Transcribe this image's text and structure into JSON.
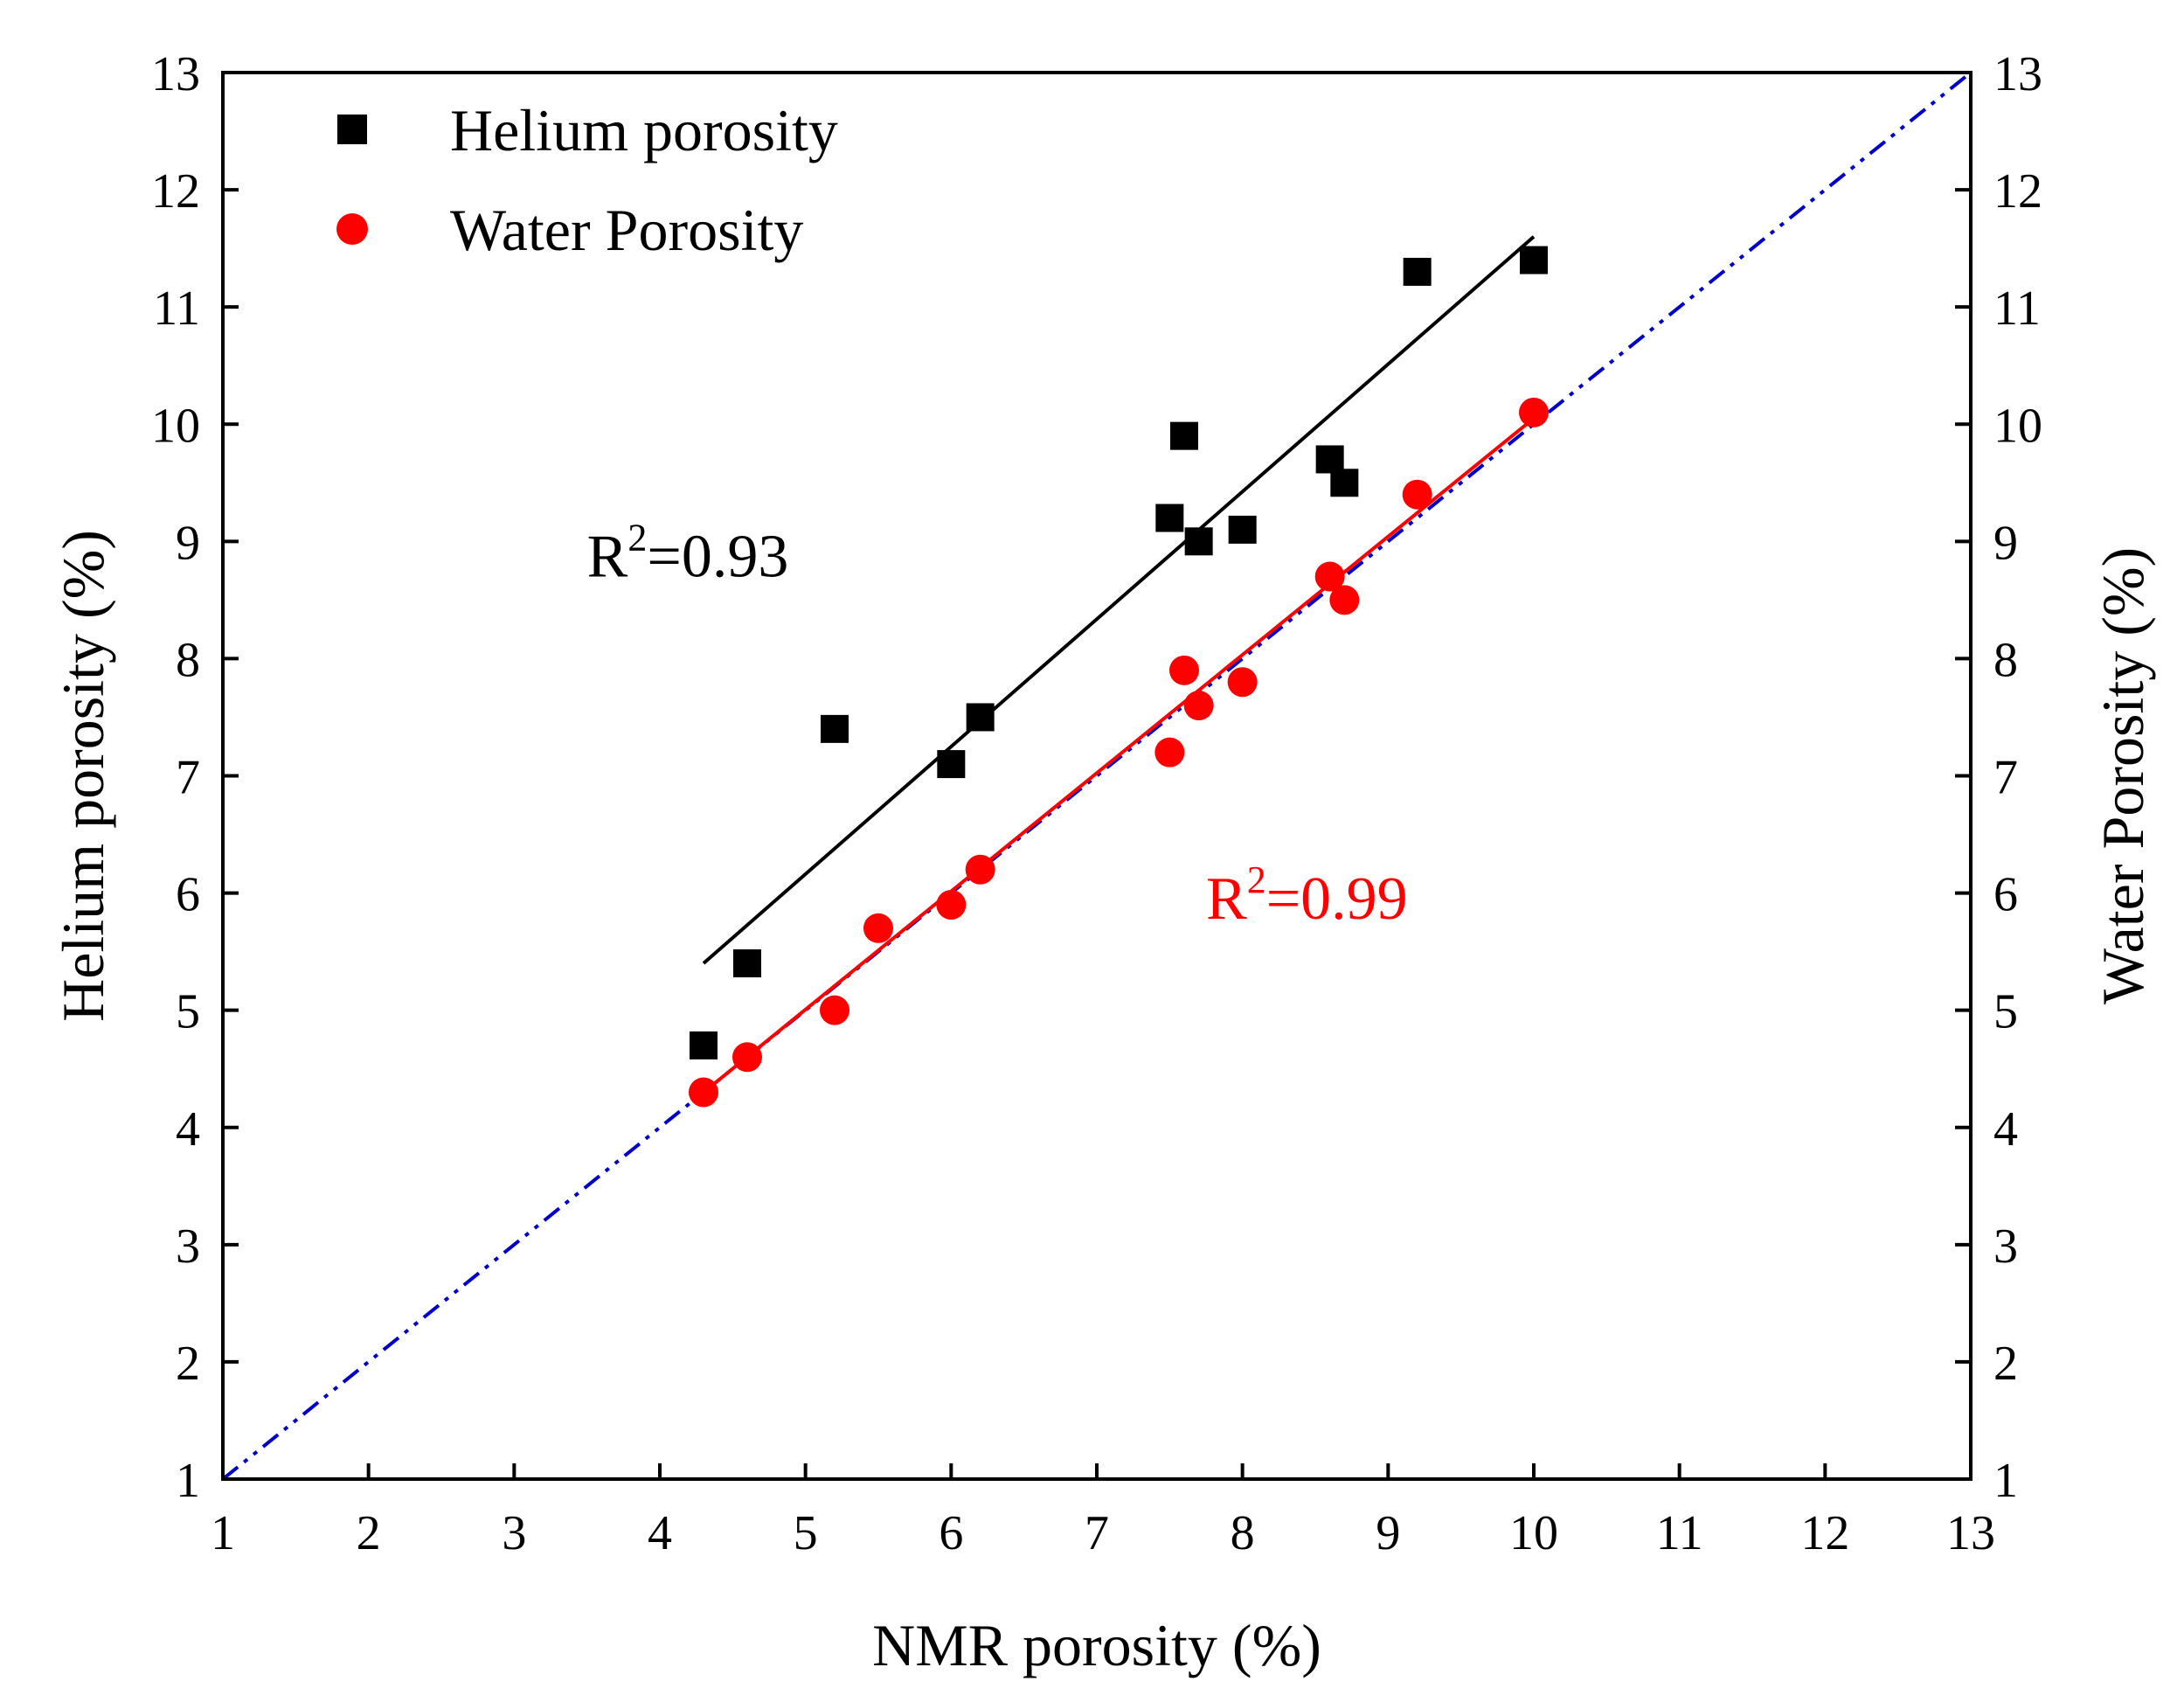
{
  "chart_data": {
    "type": "scatter",
    "xlabel": "NMR porosity (%)",
    "ylabel_left": "Helium porosity (%)",
    "ylabel_right": "Water Porosity (%)",
    "xlim": [
      1,
      13
    ],
    "ylim": [
      1,
      13
    ],
    "ticks": [
      "1",
      "2",
      "3",
      "4",
      "5",
      "6",
      "7",
      "8",
      "9",
      "10",
      "11",
      "12",
      "13"
    ],
    "grid": false,
    "legend_position": "top-left",
    "series": [
      {
        "name": "Helium porosity",
        "marker": "square",
        "color": "#000000",
        "points": [
          {
            "x": 4.3,
            "y": 4.7
          },
          {
            "x": 4.6,
            "y": 5.4
          },
          {
            "x": 5.2,
            "y": 7.4
          },
          {
            "x": 6.0,
            "y": 7.1
          },
          {
            "x": 6.2,
            "y": 7.5
          },
          {
            "x": 7.5,
            "y": 9.2
          },
          {
            "x": 7.6,
            "y": 9.9
          },
          {
            "x": 7.7,
            "y": 9.0
          },
          {
            "x": 8.0,
            "y": 9.1
          },
          {
            "x": 8.6,
            "y": 9.7
          },
          {
            "x": 8.7,
            "y": 9.5
          },
          {
            "x": 9.2,
            "y": 11.3
          },
          {
            "x": 10.0,
            "y": 11.4
          }
        ],
        "fit": {
          "x": [
            4.3,
            10.0
          ],
          "y": [
            5.4,
            11.6
          ],
          "color": "#000000"
        }
      },
      {
        "name": "Water Porosity",
        "marker": "circle",
        "color": "#ff0000",
        "points": [
          {
            "x": 4.3,
            "y": 4.3
          },
          {
            "x": 4.6,
            "y": 4.6
          },
          {
            "x": 5.2,
            "y": 5.0
          },
          {
            "x": 5.5,
            "y": 5.7
          },
          {
            "x": 6.0,
            "y": 5.9
          },
          {
            "x": 6.2,
            "y": 6.2
          },
          {
            "x": 7.5,
            "y": 7.2
          },
          {
            "x": 7.6,
            "y": 7.9
          },
          {
            "x": 7.7,
            "y": 7.6
          },
          {
            "x": 8.0,
            "y": 7.8
          },
          {
            "x": 8.6,
            "y": 8.7
          },
          {
            "x": 8.7,
            "y": 8.5
          },
          {
            "x": 9.2,
            "y": 9.4
          },
          {
            "x": 10.0,
            "y": 10.1
          }
        ],
        "fit": {
          "x": [
            4.3,
            10.0
          ],
          "y": [
            4.3,
            10.05
          ],
          "color": "#ff0000"
        }
      }
    ],
    "reference_line": {
      "x": [
        1,
        13
      ],
      "y": [
        1,
        13
      ],
      "color": "#0000cc",
      "style": "dash-dot-dot"
    },
    "annotations": [
      {
        "base": "R",
        "sup": "2",
        "rest": "=0.93",
        "color": "#000000",
        "x": 3.5,
        "y": 8.7
      },
      {
        "base": "R",
        "sup": "2",
        "rest": "=0.99",
        "color": "#ff0000",
        "x": 7.75,
        "y": 5.78
      }
    ]
  }
}
